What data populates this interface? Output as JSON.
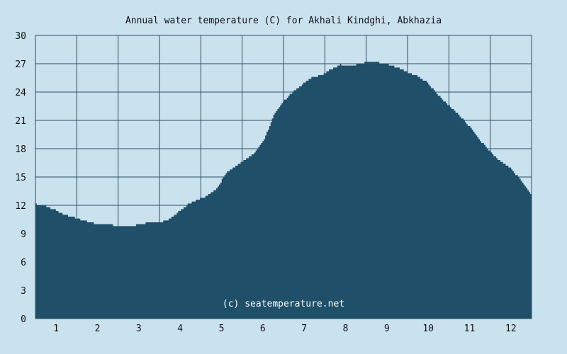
{
  "chart_data": {
    "type": "area",
    "title": "Annual water temperature (C) for Akhali Kindghi, Abkhazia",
    "xlabel": "",
    "ylabel": "",
    "ylim": [
      0,
      30
    ],
    "y_ticks": [
      "0",
      "3",
      "6",
      "9",
      "12",
      "15",
      "18",
      "21",
      "24",
      "27",
      "30"
    ],
    "x_ticks": [
      "1",
      "2",
      "3",
      "4",
      "5",
      "6",
      "7",
      "8",
      "9",
      "10",
      "11",
      "12"
    ],
    "grid": true,
    "fill_color": "#1f4f69",
    "background_color": "#cae1ee",
    "watermark": "(c) seatemperature.net",
    "series": [
      {
        "x": [
          1,
          8,
          15,
          22,
          29,
          36,
          43,
          50,
          57,
          64,
          71,
          78,
          85,
          92,
          99,
          106,
          113,
          120,
          127,
          134,
          141,
          148,
          155,
          162,
          169,
          176,
          183,
          190,
          197,
          204,
          211,
          218,
          225,
          232,
          239,
          246,
          253,
          260,
          267,
          274,
          281,
          288,
          295,
          302,
          309,
          316,
          323,
          330,
          337,
          344,
          351,
          358,
          365
        ],
        "values": [
          12.1,
          11.9,
          11.5,
          11.0,
          10.7,
          10.4,
          10.1,
          10.0,
          9.9,
          9.8,
          9.8,
          10.0,
          10.2,
          10.2,
          10.5,
          11.3,
          12.1,
          12.6,
          13.0,
          13.8,
          15.4,
          16.1,
          16.8,
          17.6,
          19.0,
          21.5,
          23.0,
          24.0,
          24.8,
          25.5,
          25.8,
          26.4,
          26.9,
          26.7,
          27.0,
          27.2,
          27.1,
          26.9,
          26.6,
          26.1,
          25.7,
          25.1,
          24.0,
          22.9,
          22.0,
          21.0,
          19.8,
          18.5,
          17.4,
          16.5,
          15.8,
          14.6,
          13.2
        ]
      }
    ]
  }
}
